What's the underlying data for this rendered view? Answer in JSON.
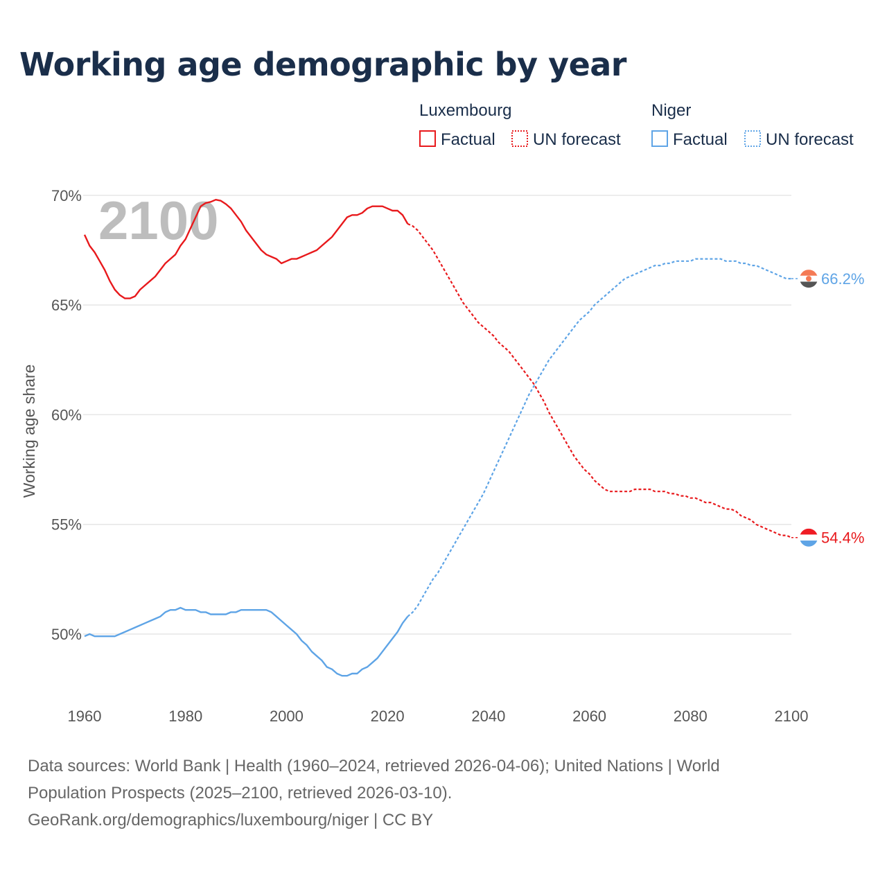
{
  "title": "Working age demographic by year",
  "legend": {
    "groups": [
      {
        "name": "Luxembourg",
        "factual": "Factual",
        "forecast": "UN forecast",
        "color": "#e8191c"
      },
      {
        "name": "Niger",
        "factual": "Factual",
        "forecast": "UN forecast",
        "color": "#5ea4e6"
      }
    ]
  },
  "footer": {
    "line1": "Data sources: World Bank | Health (1960–2024, retrieved 2026-04-06); United Nations | World",
    "line2": "Population Prospects (2025–2100, retrieved 2026-03-10).",
    "line3": "GeoRank.org/demographics/luxembourg/niger | CC BY"
  },
  "chart_data": {
    "type": "line",
    "title": "Working age demographic by year",
    "xlabel": "",
    "ylabel": "Working age share",
    "xlim": [
      1960,
      2100
    ],
    "ylim": [
      47,
      70.5
    ],
    "x_ticks": [
      1960,
      1980,
      2000,
      2020,
      2040,
      2060,
      2080,
      2100
    ],
    "x_tick_labels": [
      "1960",
      "1980",
      "2000",
      "2020",
      "2040",
      "2060",
      "2080",
      "2100"
    ],
    "y_ticks": [
      50,
      55,
      60,
      65,
      70
    ],
    "y_tick_labels": [
      "50%",
      "55%",
      "60%",
      "65%",
      "70%"
    ],
    "year_display": "2100",
    "forecast_start": 2024,
    "series": [
      {
        "name": "Luxembourg",
        "color": "#e8191c",
        "end_label": "54.4%",
        "points": [
          [
            1960,
            68.2
          ],
          [
            1961,
            67.7
          ],
          [
            1962,
            67.4
          ],
          [
            1963,
            67.0
          ],
          [
            1964,
            66.6
          ],
          [
            1965,
            66.1
          ],
          [
            1966,
            65.7
          ],
          [
            1967,
            65.45
          ],
          [
            1968,
            65.3
          ],
          [
            1969,
            65.3
          ],
          [
            1970,
            65.4
          ],
          [
            1971,
            65.7
          ],
          [
            1972,
            65.9
          ],
          [
            1973,
            66.1
          ],
          [
            1974,
            66.3
          ],
          [
            1975,
            66.6
          ],
          [
            1976,
            66.9
          ],
          [
            1977,
            67.1
          ],
          [
            1978,
            67.3
          ],
          [
            1979,
            67.7
          ],
          [
            1980,
            68.0
          ],
          [
            1981,
            68.5
          ],
          [
            1982,
            69.0
          ],
          [
            1983,
            69.5
          ],
          [
            1984,
            69.65
          ],
          [
            1985,
            69.7
          ],
          [
            1986,
            69.8
          ],
          [
            1987,
            69.75
          ],
          [
            1988,
            69.6
          ],
          [
            1989,
            69.4
          ],
          [
            1990,
            69.1
          ],
          [
            1991,
            68.8
          ],
          [
            1992,
            68.4
          ],
          [
            1993,
            68.1
          ],
          [
            1994,
            67.8
          ],
          [
            1995,
            67.5
          ],
          [
            1996,
            67.3
          ],
          [
            1997,
            67.2
          ],
          [
            1998,
            67.1
          ],
          [
            1999,
            66.9
          ],
          [
            2000,
            67.0
          ],
          [
            2001,
            67.1
          ],
          [
            2002,
            67.1
          ],
          [
            2003,
            67.2
          ],
          [
            2004,
            67.3
          ],
          [
            2005,
            67.4
          ],
          [
            2006,
            67.5
          ],
          [
            2007,
            67.7
          ],
          [
            2008,
            67.9
          ],
          [
            2009,
            68.1
          ],
          [
            2010,
            68.4
          ],
          [
            2011,
            68.7
          ],
          [
            2012,
            69.0
          ],
          [
            2013,
            69.1
          ],
          [
            2014,
            69.1
          ],
          [
            2015,
            69.2
          ],
          [
            2016,
            69.4
          ],
          [
            2017,
            69.5
          ],
          [
            2018,
            69.5
          ],
          [
            2019,
            69.5
          ],
          [
            2020,
            69.4
          ],
          [
            2021,
            69.3
          ],
          [
            2022,
            69.3
          ],
          [
            2023,
            69.1
          ],
          [
            2024,
            68.7
          ],
          [
            2025,
            68.6
          ],
          [
            2026,
            68.4
          ],
          [
            2027,
            68.1
          ],
          [
            2028,
            67.8
          ],
          [
            2029,
            67.5
          ],
          [
            2030,
            67.1
          ],
          [
            2031,
            66.7
          ],
          [
            2032,
            66.3
          ],
          [
            2033,
            65.9
          ],
          [
            2034,
            65.5
          ],
          [
            2035,
            65.1
          ],
          [
            2036,
            64.8
          ],
          [
            2037,
            64.5
          ],
          [
            2038,
            64.2
          ],
          [
            2039,
            64.0
          ],
          [
            2040,
            63.8
          ],
          [
            2041,
            63.6
          ],
          [
            2042,
            63.3
          ],
          [
            2043,
            63.1
          ],
          [
            2044,
            62.9
          ],
          [
            2045,
            62.6
          ],
          [
            2046,
            62.3
          ],
          [
            2047,
            62.0
          ],
          [
            2048,
            61.7
          ],
          [
            2049,
            61.4
          ],
          [
            2050,
            61.0
          ],
          [
            2051,
            60.6
          ],
          [
            2052,
            60.1
          ],
          [
            2053,
            59.7
          ],
          [
            2054,
            59.3
          ],
          [
            2055,
            58.9
          ],
          [
            2056,
            58.5
          ],
          [
            2057,
            58.1
          ],
          [
            2058,
            57.8
          ],
          [
            2059,
            57.5
          ],
          [
            2060,
            57.3
          ],
          [
            2061,
            57.0
          ],
          [
            2062,
            56.8
          ],
          [
            2063,
            56.6
          ],
          [
            2064,
            56.5
          ],
          [
            2065,
            56.5
          ],
          [
            2066,
            56.5
          ],
          [
            2067,
            56.5
          ],
          [
            2068,
            56.5
          ],
          [
            2069,
            56.6
          ],
          [
            2070,
            56.6
          ],
          [
            2071,
            56.6
          ],
          [
            2072,
            56.6
          ],
          [
            2073,
            56.5
          ],
          [
            2074,
            56.5
          ],
          [
            2075,
            56.5
          ],
          [
            2076,
            56.4
          ],
          [
            2077,
            56.4
          ],
          [
            2078,
            56.3
          ],
          [
            2079,
            56.3
          ],
          [
            2080,
            56.2
          ],
          [
            2081,
            56.2
          ],
          [
            2082,
            56.1
          ],
          [
            2083,
            56.0
          ],
          [
            2084,
            56.0
          ],
          [
            2085,
            55.9
          ],
          [
            2086,
            55.8
          ],
          [
            2087,
            55.7
          ],
          [
            2088,
            55.7
          ],
          [
            2089,
            55.6
          ],
          [
            2090,
            55.4
          ],
          [
            2091,
            55.3
          ],
          [
            2092,
            55.2
          ],
          [
            2093,
            55.0
          ],
          [
            2094,
            54.9
          ],
          [
            2095,
            54.8
          ],
          [
            2096,
            54.7
          ],
          [
            2097,
            54.6
          ],
          [
            2098,
            54.5
          ],
          [
            2099,
            54.5
          ],
          [
            2100,
            54.4
          ]
        ]
      },
      {
        "name": "Niger",
        "color": "#5ea4e6",
        "end_label": "66.2%",
        "points": [
          [
            1960,
            49.9
          ],
          [
            1961,
            50.0
          ],
          [
            1962,
            49.9
          ],
          [
            1963,
            49.9
          ],
          [
            1964,
            49.9
          ],
          [
            1965,
            49.9
          ],
          [
            1966,
            49.9
          ],
          [
            1967,
            50.0
          ],
          [
            1968,
            50.1
          ],
          [
            1969,
            50.2
          ],
          [
            1970,
            50.3
          ],
          [
            1971,
            50.4
          ],
          [
            1972,
            50.5
          ],
          [
            1973,
            50.6
          ],
          [
            1974,
            50.7
          ],
          [
            1975,
            50.8
          ],
          [
            1976,
            51.0
          ],
          [
            1977,
            51.1
          ],
          [
            1978,
            51.1
          ],
          [
            1979,
            51.2
          ],
          [
            1980,
            51.1
          ],
          [
            1981,
            51.1
          ],
          [
            1982,
            51.1
          ],
          [
            1983,
            51.0
          ],
          [
            1984,
            51.0
          ],
          [
            1985,
            50.9
          ],
          [
            1986,
            50.9
          ],
          [
            1987,
            50.9
          ],
          [
            1988,
            50.9
          ],
          [
            1989,
            51.0
          ],
          [
            1990,
            51.0
          ],
          [
            1991,
            51.1
          ],
          [
            1992,
            51.1
          ],
          [
            1993,
            51.1
          ],
          [
            1994,
            51.1
          ],
          [
            1995,
            51.1
          ],
          [
            1996,
            51.1
          ],
          [
            1997,
            51.0
          ],
          [
            1998,
            50.8
          ],
          [
            1999,
            50.6
          ],
          [
            2000,
            50.4
          ],
          [
            2001,
            50.2
          ],
          [
            2002,
            50.0
          ],
          [
            2003,
            49.7
          ],
          [
            2004,
            49.5
          ],
          [
            2005,
            49.2
          ],
          [
            2006,
            49.0
          ],
          [
            2007,
            48.8
          ],
          [
            2008,
            48.5
          ],
          [
            2009,
            48.4
          ],
          [
            2010,
            48.2
          ],
          [
            2011,
            48.1
          ],
          [
            2012,
            48.1
          ],
          [
            2013,
            48.2
          ],
          [
            2014,
            48.2
          ],
          [
            2015,
            48.4
          ],
          [
            2016,
            48.5
          ],
          [
            2017,
            48.7
          ],
          [
            2018,
            48.9
          ],
          [
            2019,
            49.2
          ],
          [
            2020,
            49.5
          ],
          [
            2021,
            49.8
          ],
          [
            2022,
            50.1
          ],
          [
            2023,
            50.5
          ],
          [
            2024,
            50.8
          ],
          [
            2025,
            51.0
          ],
          [
            2026,
            51.3
          ],
          [
            2027,
            51.7
          ],
          [
            2028,
            52.1
          ],
          [
            2029,
            52.5
          ],
          [
            2030,
            52.8
          ],
          [
            2031,
            53.2
          ],
          [
            2032,
            53.6
          ],
          [
            2033,
            54.0
          ],
          [
            2034,
            54.4
          ],
          [
            2035,
            54.8
          ],
          [
            2036,
            55.2
          ],
          [
            2037,
            55.6
          ],
          [
            2038,
            56.0
          ],
          [
            2039,
            56.4
          ],
          [
            2040,
            56.9
          ],
          [
            2041,
            57.4
          ],
          [
            2042,
            57.9
          ],
          [
            2043,
            58.4
          ],
          [
            2044,
            58.9
          ],
          [
            2045,
            59.4
          ],
          [
            2046,
            59.9
          ],
          [
            2047,
            60.4
          ],
          [
            2048,
            60.9
          ],
          [
            2049,
            61.3
          ],
          [
            2050,
            61.7
          ],
          [
            2051,
            62.1
          ],
          [
            2052,
            62.5
          ],
          [
            2053,
            62.8
          ],
          [
            2054,
            63.1
          ],
          [
            2055,
            63.4
          ],
          [
            2056,
            63.7
          ],
          [
            2057,
            64.0
          ],
          [
            2058,
            64.3
          ],
          [
            2059,
            64.5
          ],
          [
            2060,
            64.7
          ],
          [
            2061,
            65.0
          ],
          [
            2062,
            65.2
          ],
          [
            2063,
            65.4
          ],
          [
            2064,
            65.6
          ],
          [
            2065,
            65.8
          ],
          [
            2066,
            66.0
          ],
          [
            2067,
            66.2
          ],
          [
            2068,
            66.3
          ],
          [
            2069,
            66.4
          ],
          [
            2070,
            66.5
          ],
          [
            2071,
            66.6
          ],
          [
            2072,
            66.7
          ],
          [
            2073,
            66.8
          ],
          [
            2074,
            66.8
          ],
          [
            2075,
            66.9
          ],
          [
            2076,
            66.9
          ],
          [
            2077,
            67.0
          ],
          [
            2078,
            67.0
          ],
          [
            2079,
            67.0
          ],
          [
            2080,
            67.0
          ],
          [
            2081,
            67.1
          ],
          [
            2082,
            67.1
          ],
          [
            2083,
            67.1
          ],
          [
            2084,
            67.1
          ],
          [
            2085,
            67.1
          ],
          [
            2086,
            67.1
          ],
          [
            2087,
            67.0
          ],
          [
            2088,
            67.0
          ],
          [
            2089,
            67.0
          ],
          [
            2090,
            66.9
          ],
          [
            2091,
            66.9
          ],
          [
            2092,
            66.8
          ],
          [
            2093,
            66.8
          ],
          [
            2094,
            66.7
          ],
          [
            2095,
            66.6
          ],
          [
            2096,
            66.5
          ],
          [
            2097,
            66.4
          ],
          [
            2098,
            66.3
          ],
          [
            2099,
            66.2
          ],
          [
            2100,
            66.2
          ]
        ]
      }
    ]
  }
}
